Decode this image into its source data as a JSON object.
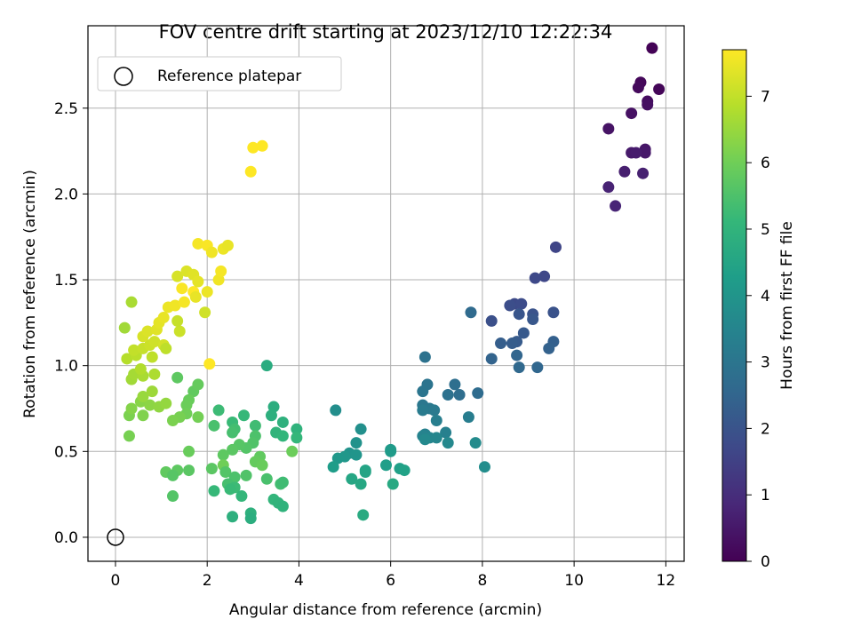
{
  "chart_data": {
    "type": "scatter",
    "title": "FOV centre drift starting at 2023/12/10 12:22:34",
    "xlabel": "Angular distance from reference (arcmin)",
    "ylabel": "Rotation from reference (arcmin)",
    "xlim": [
      -0.6,
      12.4
    ],
    "ylim": [
      -0.14,
      2.98
    ],
    "xticks": [
      0,
      2,
      4,
      6,
      8,
      10,
      12
    ],
    "xtick_labels": [
      "0",
      "2",
      "4",
      "6",
      "8",
      "10",
      "12"
    ],
    "yticks": [
      0.0,
      0.5,
      1.0,
      1.5,
      2.0,
      2.5
    ],
    "ytick_labels": [
      "0.0",
      "0.5",
      "1.0",
      "1.5",
      "2.0",
      "2.5"
    ],
    "grid": true,
    "legend": {
      "position": "top-left",
      "entries": [
        {
          "label": "Reference platepar",
          "marker": "open-circle"
        }
      ]
    },
    "reference_point": {
      "x": 0,
      "y": 0
    },
    "colorbar": {
      "label": "Hours from first FF file",
      "range": [
        0,
        7.7
      ],
      "ticks": [
        0,
        1,
        2,
        3,
        4,
        5,
        6,
        7
      ],
      "tick_labels": [
        "0",
        "1",
        "2",
        "3",
        "4",
        "5",
        "6",
        "7"
      ],
      "colormap": "viridis",
      "colors": [
        "#440154",
        "#482878",
        "#3e4989",
        "#31688e",
        "#26828e",
        "#1f9e89",
        "#35b779",
        "#6ece58",
        "#b5de2b",
        "#fde725"
      ]
    },
    "points": [
      {
        "x": 11.7,
        "y": 2.85,
        "c": 0.05
      },
      {
        "x": 11.85,
        "y": 2.61,
        "c": 0.1
      },
      {
        "x": 11.45,
        "y": 2.65,
        "c": 0.15
      },
      {
        "x": 11.4,
        "y": 2.62,
        "c": 0.2
      },
      {
        "x": 11.6,
        "y": 2.54,
        "c": 0.25
      },
      {
        "x": 11.6,
        "y": 2.52,
        "c": 0.3
      },
      {
        "x": 11.25,
        "y": 2.47,
        "c": 0.35
      },
      {
        "x": 10.75,
        "y": 2.38,
        "c": 0.4
      },
      {
        "x": 11.55,
        "y": 2.26,
        "c": 0.45
      },
      {
        "x": 11.55,
        "y": 2.24,
        "c": 0.5
      },
      {
        "x": 11.25,
        "y": 2.24,
        "c": 0.55
      },
      {
        "x": 11.35,
        "y": 2.24,
        "c": 0.6
      },
      {
        "x": 11.1,
        "y": 2.13,
        "c": 0.65
      },
      {
        "x": 11.5,
        "y": 2.12,
        "c": 0.7
      },
      {
        "x": 10.75,
        "y": 2.04,
        "c": 0.75
      },
      {
        "x": 10.9,
        "y": 1.93,
        "c": 0.8
      },
      {
        "x": 9.6,
        "y": 1.69,
        "c": 1.6
      },
      {
        "x": 9.35,
        "y": 1.52,
        "c": 1.65
      },
      {
        "x": 9.15,
        "y": 1.51,
        "c": 1.7
      },
      {
        "x": 8.7,
        "y": 1.36,
        "c": 1.75
      },
      {
        "x": 8.85,
        "y": 1.36,
        "c": 1.8
      },
      {
        "x": 8.6,
        "y": 1.35,
        "c": 1.85
      },
      {
        "x": 8.2,
        "y": 1.26,
        "c": 1.9
      },
      {
        "x": 9.55,
        "y": 1.31,
        "c": 1.95
      },
      {
        "x": 9.1,
        "y": 1.3,
        "c": 2.0
      },
      {
        "x": 8.8,
        "y": 1.3,
        "c": 2.05
      },
      {
        "x": 9.1,
        "y": 1.27,
        "c": 2.1
      },
      {
        "x": 8.9,
        "y": 1.19,
        "c": 2.15
      },
      {
        "x": 8.75,
        "y": 1.14,
        "c": 2.2
      },
      {
        "x": 8.65,
        "y": 1.13,
        "c": 2.25
      },
      {
        "x": 8.4,
        "y": 1.13,
        "c": 2.3
      },
      {
        "x": 9.55,
        "y": 1.14,
        "c": 2.35
      },
      {
        "x": 9.45,
        "y": 1.1,
        "c": 2.4
      },
      {
        "x": 8.2,
        "y": 1.04,
        "c": 2.45
      },
      {
        "x": 8.75,
        "y": 1.06,
        "c": 2.5
      },
      {
        "x": 9.2,
        "y": 0.99,
        "c": 2.55
      },
      {
        "x": 8.8,
        "y": 0.99,
        "c": 2.6
      },
      {
        "x": 7.75,
        "y": 1.31,
        "c": 2.65
      },
      {
        "x": 7.9,
        "y": 0.84,
        "c": 2.7
      },
      {
        "x": 7.5,
        "y": 0.83,
        "c": 2.75
      },
      {
        "x": 7.4,
        "y": 0.89,
        "c": 2.8
      },
      {
        "x": 7.25,
        "y": 0.83,
        "c": 2.85
      },
      {
        "x": 6.75,
        "y": 1.05,
        "c": 2.9
      },
      {
        "x": 6.8,
        "y": 0.89,
        "c": 2.95
      },
      {
        "x": 6.7,
        "y": 0.85,
        "c": 3.0
      },
      {
        "x": 6.7,
        "y": 0.77,
        "c": 3.05
      },
      {
        "x": 6.85,
        "y": 0.75,
        "c": 3.1
      },
      {
        "x": 6.95,
        "y": 0.74,
        "c": 3.15
      },
      {
        "x": 6.7,
        "y": 0.74,
        "c": 3.2
      },
      {
        "x": 7.7,
        "y": 0.7,
        "c": 3.25
      },
      {
        "x": 7.0,
        "y": 0.68,
        "c": 3.3
      },
      {
        "x": 7.2,
        "y": 0.61,
        "c": 3.35
      },
      {
        "x": 6.75,
        "y": 0.6,
        "c": 3.4
      },
      {
        "x": 6.7,
        "y": 0.59,
        "c": 3.45
      },
      {
        "x": 6.85,
        "y": 0.58,
        "c": 3.5
      },
      {
        "x": 7.0,
        "y": 0.58,
        "c": 3.55
      },
      {
        "x": 7.25,
        "y": 0.55,
        "c": 3.6
      },
      {
        "x": 6.75,
        "y": 0.57,
        "c": 3.65
      },
      {
        "x": 7.85,
        "y": 0.55,
        "c": 3.7
      },
      {
        "x": 8.05,
        "y": 0.41,
        "c": 3.75
      },
      {
        "x": 4.8,
        "y": 0.74,
        "c": 3.8
      },
      {
        "x": 5.35,
        "y": 0.63,
        "c": 3.85
      },
      {
        "x": 5.25,
        "y": 0.55,
        "c": 3.9
      },
      {
        "x": 5.1,
        "y": 0.49,
        "c": 3.95
      },
      {
        "x": 5.25,
        "y": 0.48,
        "c": 4.0
      },
      {
        "x": 5.0,
        "y": 0.47,
        "c": 4.05
      },
      {
        "x": 4.85,
        "y": 0.46,
        "c": 4.1
      },
      {
        "x": 6.0,
        "y": 0.51,
        "c": 4.15
      },
      {
        "x": 6.0,
        "y": 0.5,
        "c": 4.2
      },
      {
        "x": 4.75,
        "y": 0.41,
        "c": 4.25
      },
      {
        "x": 5.9,
        "y": 0.42,
        "c": 4.3
      },
      {
        "x": 6.2,
        "y": 0.4,
        "c": 4.35
      },
      {
        "x": 6.3,
        "y": 0.39,
        "c": 4.4
      },
      {
        "x": 5.45,
        "y": 0.39,
        "c": 4.45
      },
      {
        "x": 5.45,
        "y": 0.38,
        "c": 4.5
      },
      {
        "x": 5.15,
        "y": 0.34,
        "c": 4.55
      },
      {
        "x": 5.35,
        "y": 0.31,
        "c": 4.6
      },
      {
        "x": 6.05,
        "y": 0.31,
        "c": 4.65
      },
      {
        "x": 5.4,
        "y": 0.13,
        "c": 4.7
      },
      {
        "x": 3.3,
        "y": 1.0,
        "c": 4.75
      },
      {
        "x": 3.45,
        "y": 0.76,
        "c": 4.8
      },
      {
        "x": 3.4,
        "y": 0.71,
        "c": 4.85
      },
      {
        "x": 3.65,
        "y": 0.67,
        "c": 4.9
      },
      {
        "x": 3.95,
        "y": 0.63,
        "c": 4.95
      },
      {
        "x": 3.5,
        "y": 0.61,
        "c": 5.0
      },
      {
        "x": 3.65,
        "y": 0.59,
        "c": 5.05
      },
      {
        "x": 3.95,
        "y": 0.58,
        "c": 5.1
      },
      {
        "x": 2.8,
        "y": 0.71,
        "c": 5.15
      },
      {
        "x": 2.55,
        "y": 0.67,
        "c": 5.2
      },
      {
        "x": 2.25,
        "y": 0.74,
        "c": 5.25
      },
      {
        "x": 3.05,
        "y": 0.65,
        "c": 5.3
      },
      {
        "x": 2.6,
        "y": 0.63,
        "c": 5.35
      },
      {
        "x": 2.55,
        "y": 0.61,
        "c": 5.4
      },
      {
        "x": 2.15,
        "y": 0.65,
        "c": 5.45
      },
      {
        "x": 3.05,
        "y": 0.59,
        "c": 5.5
      },
      {
        "x": 3.0,
        "y": 0.55,
        "c": 5.55
      },
      {
        "x": 2.85,
        "y": 0.52,
        "c": 5.6
      },
      {
        "x": 2.7,
        "y": 0.54,
        "c": 5.65
      },
      {
        "x": 2.55,
        "y": 0.51,
        "c": 5.7
      },
      {
        "x": 2.35,
        "y": 0.48,
        "c": 5.75
      },
      {
        "x": 3.15,
        "y": 0.47,
        "c": 5.8
      },
      {
        "x": 3.05,
        "y": 0.44,
        "c": 5.85
      },
      {
        "x": 3.2,
        "y": 0.42,
        "c": 5.9
      },
      {
        "x": 3.85,
        "y": 0.5,
        "c": 5.95
      },
      {
        "x": 2.35,
        "y": 0.42,
        "c": 6.0
      },
      {
        "x": 2.4,
        "y": 0.38,
        "c": 5.6
      },
      {
        "x": 2.85,
        "y": 0.36,
        "c": 5.55
      },
      {
        "x": 2.6,
        "y": 0.35,
        "c": 5.5
      },
      {
        "x": 3.3,
        "y": 0.34,
        "c": 5.45
      },
      {
        "x": 2.45,
        "y": 0.31,
        "c": 5.4
      },
      {
        "x": 3.6,
        "y": 0.31,
        "c": 5.35
      },
      {
        "x": 3.65,
        "y": 0.32,
        "c": 5.3
      },
      {
        "x": 2.6,
        "y": 0.29,
        "c": 5.25
      },
      {
        "x": 2.5,
        "y": 0.28,
        "c": 5.2
      },
      {
        "x": 2.15,
        "y": 0.27,
        "c": 5.15
      },
      {
        "x": 2.75,
        "y": 0.24,
        "c": 5.1
      },
      {
        "x": 3.45,
        "y": 0.22,
        "c": 5.05
      },
      {
        "x": 3.55,
        "y": 0.2,
        "c": 5.0
      },
      {
        "x": 3.65,
        "y": 0.18,
        "c": 4.95
      },
      {
        "x": 2.95,
        "y": 0.14,
        "c": 4.9
      },
      {
        "x": 2.55,
        "y": 0.12,
        "c": 4.85
      },
      {
        "x": 2.95,
        "y": 0.11,
        "c": 4.8
      },
      {
        "x": 2.1,
        "y": 0.4,
        "c": 5.7
      },
      {
        "x": 1.35,
        "y": 0.93,
        "c": 5.75
      },
      {
        "x": 1.7,
        "y": 0.85,
        "c": 5.8
      },
      {
        "x": 1.8,
        "y": 0.89,
        "c": 5.85
      },
      {
        "x": 1.6,
        "y": 0.8,
        "c": 5.9
      },
      {
        "x": 1.55,
        "y": 0.77,
        "c": 5.95
      },
      {
        "x": 1.55,
        "y": 0.72,
        "c": 6.0
      },
      {
        "x": 1.8,
        "y": 0.7,
        "c": 6.05
      },
      {
        "x": 1.4,
        "y": 0.7,
        "c": 6.1
      },
      {
        "x": 1.25,
        "y": 0.68,
        "c": 6.15
      },
      {
        "x": 1.6,
        "y": 0.5,
        "c": 5.9
      },
      {
        "x": 1.1,
        "y": 0.38,
        "c": 5.8
      },
      {
        "x": 1.35,
        "y": 0.39,
        "c": 5.75
      },
      {
        "x": 1.6,
        "y": 0.39,
        "c": 5.7
      },
      {
        "x": 1.25,
        "y": 0.36,
        "c": 5.65
      },
      {
        "x": 1.25,
        "y": 0.24,
        "c": 5.6
      },
      {
        "x": 0.3,
        "y": 0.59,
        "c": 6.1
      },
      {
        "x": 0.3,
        "y": 0.71,
        "c": 6.15
      },
      {
        "x": 0.6,
        "y": 0.71,
        "c": 6.2
      },
      {
        "x": 0.35,
        "y": 0.75,
        "c": 6.25
      },
      {
        "x": 0.55,
        "y": 0.79,
        "c": 6.3
      },
      {
        "x": 0.75,
        "y": 0.77,
        "c": 6.35
      },
      {
        "x": 0.95,
        "y": 0.76,
        "c": 6.4
      },
      {
        "x": 1.1,
        "y": 0.78,
        "c": 6.45
      },
      {
        "x": 0.6,
        "y": 0.82,
        "c": 6.5
      },
      {
        "x": 0.8,
        "y": 0.85,
        "c": 6.55
      },
      {
        "x": 0.35,
        "y": 0.92,
        "c": 6.6
      },
      {
        "x": 0.4,
        "y": 0.95,
        "c": 6.65
      },
      {
        "x": 0.6,
        "y": 0.94,
        "c": 6.7
      },
      {
        "x": 0.85,
        "y": 0.95,
        "c": 6.75
      },
      {
        "x": 0.55,
        "y": 0.98,
        "c": 6.8
      },
      {
        "x": 0.25,
        "y": 1.04,
        "c": 6.85
      },
      {
        "x": 0.45,
        "y": 1.06,
        "c": 6.9
      },
      {
        "x": 0.8,
        "y": 1.05,
        "c": 6.95
      },
      {
        "x": 0.4,
        "y": 1.09,
        "c": 7.0
      },
      {
        "x": 0.6,
        "y": 1.1,
        "c": 7.05
      },
      {
        "x": 0.75,
        "y": 1.12,
        "c": 7.1
      },
      {
        "x": 0.85,
        "y": 1.14,
        "c": 7.15
      },
      {
        "x": 1.05,
        "y": 1.12,
        "c": 7.2
      },
      {
        "x": 0.6,
        "y": 1.17,
        "c": 7.25
      },
      {
        "x": 0.7,
        "y": 1.2,
        "c": 7.3
      },
      {
        "x": 0.9,
        "y": 1.21,
        "c": 7.35
      },
      {
        "x": 0.95,
        "y": 1.25,
        "c": 7.4
      },
      {
        "x": 1.05,
        "y": 1.28,
        "c": 7.45
      },
      {
        "x": 0.2,
        "y": 1.22,
        "c": 6.6
      },
      {
        "x": 0.35,
        "y": 1.37,
        "c": 6.7
      },
      {
        "x": 1.15,
        "y": 1.34,
        "c": 7.5
      },
      {
        "x": 1.3,
        "y": 1.35,
        "c": 7.55
      },
      {
        "x": 1.5,
        "y": 1.37,
        "c": 7.6
      },
      {
        "x": 1.45,
        "y": 1.45,
        "c": 7.65
      },
      {
        "x": 1.7,
        "y": 1.43,
        "c": 7.7
      },
      {
        "x": 1.35,
        "y": 1.52,
        "c": 7.25
      },
      {
        "x": 1.55,
        "y": 1.55,
        "c": 7.3
      },
      {
        "x": 1.7,
        "y": 1.53,
        "c": 7.35
      },
      {
        "x": 1.8,
        "y": 1.49,
        "c": 7.4
      },
      {
        "x": 1.75,
        "y": 1.4,
        "c": 7.45
      },
      {
        "x": 2.0,
        "y": 1.43,
        "c": 7.5
      },
      {
        "x": 2.25,
        "y": 1.5,
        "c": 7.55
      },
      {
        "x": 2.3,
        "y": 1.55,
        "c": 7.6
      },
      {
        "x": 1.95,
        "y": 1.31,
        "c": 7.15
      },
      {
        "x": 1.4,
        "y": 1.2,
        "c": 7.1
      },
      {
        "x": 1.35,
        "y": 1.26,
        "c": 7.05
      },
      {
        "x": 1.1,
        "y": 1.1,
        "c": 6.95
      },
      {
        "x": 1.8,
        "y": 1.71,
        "c": 7.6
      },
      {
        "x": 2.0,
        "y": 1.7,
        "c": 7.65
      },
      {
        "x": 2.1,
        "y": 1.66,
        "c": 7.55
      },
      {
        "x": 2.35,
        "y": 1.68,
        "c": 7.5
      },
      {
        "x": 2.45,
        "y": 1.7,
        "c": 7.45
      },
      {
        "x": 2.05,
        "y": 1.01,
        "c": 7.7
      },
      {
        "x": 2.95,
        "y": 2.13,
        "c": 7.7
      },
      {
        "x": 3.0,
        "y": 2.27,
        "c": 7.7
      },
      {
        "x": 3.2,
        "y": 2.28,
        "c": 7.7
      }
    ]
  }
}
